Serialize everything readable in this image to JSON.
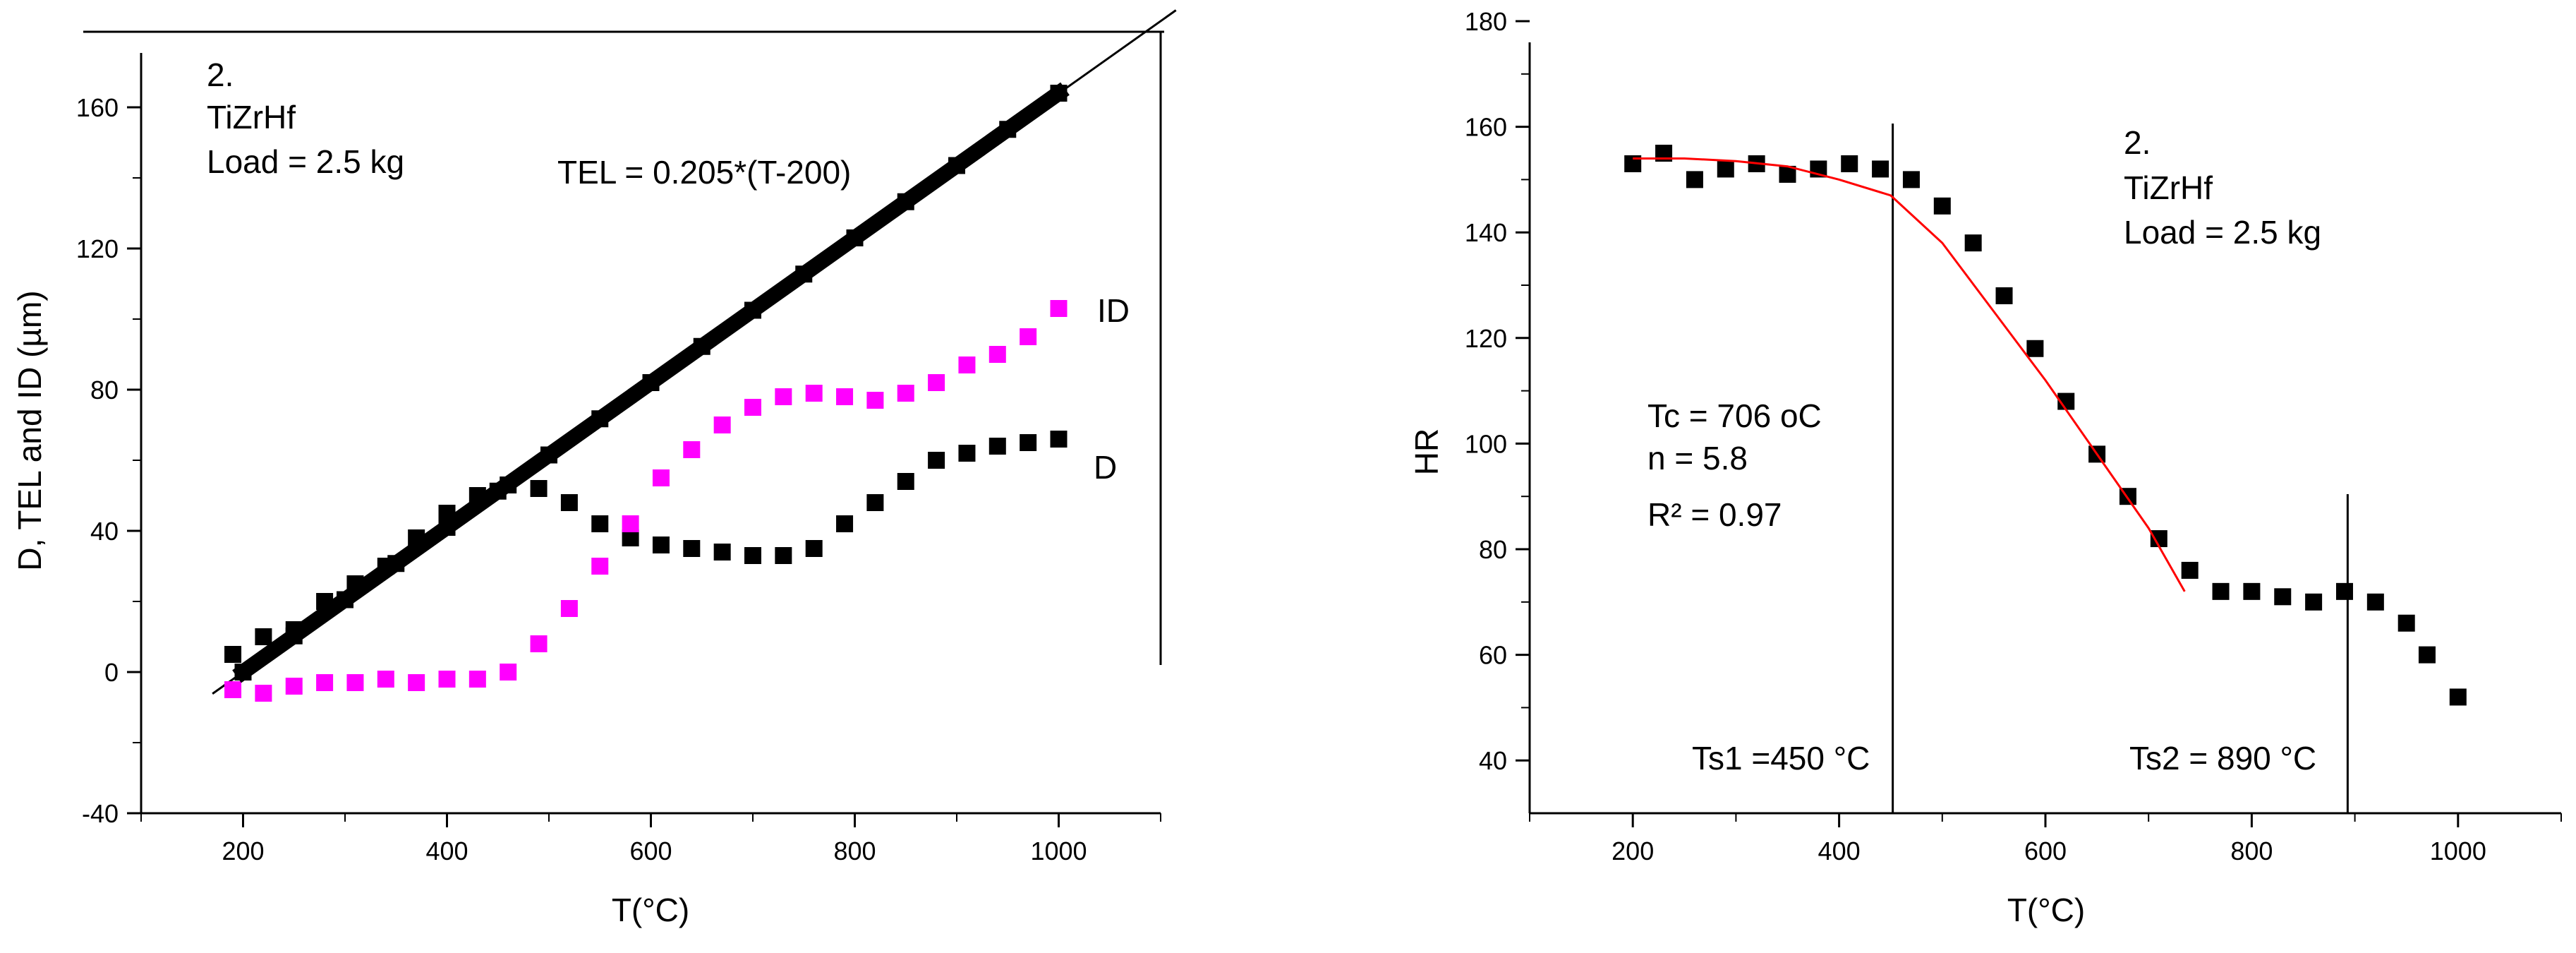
{
  "chart_data": [
    {
      "type": "scatter",
      "title": "",
      "xlabel": "T(°C)",
      "ylabel": "D, TEL and ID (µm)",
      "xlim": [
        100,
        1100
      ],
      "ylim": [
        -40,
        180
      ],
      "xticks": [
        200,
        400,
        600,
        800,
        1000
      ],
      "yticks": [
        -40,
        0,
        40,
        80,
        120,
        160
      ],
      "annotations": [
        "2.",
        "TiZrHf",
        "Load = 2.5 kg",
        "TEL = 0.205*(T-200)"
      ],
      "series": [
        {
          "name": "D",
          "color": "#000000",
          "marker": "square",
          "points": [
            [
              190,
              5
            ],
            [
              220,
              10
            ],
            [
              250,
              12
            ],
            [
              280,
              20
            ],
            [
              310,
              25
            ],
            [
              340,
              30
            ],
            [
              370,
              38
            ],
            [
              400,
              45
            ],
            [
              430,
              50
            ],
            [
              460,
              53
            ],
            [
              490,
              52
            ],
            [
              520,
              48
            ],
            [
              550,
              42
            ],
            [
              580,
              38
            ],
            [
              610,
              36
            ],
            [
              640,
              35
            ],
            [
              670,
              34
            ],
            [
              700,
              33
            ],
            [
              730,
              33
            ],
            [
              760,
              35
            ],
            [
              790,
              42
            ],
            [
              820,
              48
            ],
            [
              850,
              54
            ],
            [
              880,
              60
            ],
            [
              910,
              62
            ],
            [
              940,
              64
            ],
            [
              970,
              65
            ],
            [
              1000,
              66
            ]
          ]
        },
        {
          "name": "ID",
          "color": "#ff00ff",
          "marker": "square",
          "points": [
            [
              190,
              -5
            ],
            [
              220,
              -6
            ],
            [
              250,
              -4
            ],
            [
              280,
              -3
            ],
            [
              310,
              -3
            ],
            [
              340,
              -2
            ],
            [
              370,
              -3
            ],
            [
              400,
              -2
            ],
            [
              430,
              -2
            ],
            [
              460,
              0
            ],
            [
              490,
              8
            ],
            [
              520,
              18
            ],
            [
              550,
              30
            ],
            [
              580,
              42
            ],
            [
              610,
              55
            ],
            [
              640,
              63
            ],
            [
              670,
              70
            ],
            [
              700,
              75
            ],
            [
              730,
              78
            ],
            [
              760,
              79
            ],
            [
              790,
              78
            ],
            [
              820,
              77
            ],
            [
              850,
              79
            ],
            [
              880,
              82
            ],
            [
              910,
              87
            ],
            [
              940,
              90
            ],
            [
              970,
              95
            ],
            [
              1000,
              103
            ]
          ]
        },
        {
          "name": "TEL",
          "color": "#000000",
          "marker": "square",
          "points": [
            [
              200,
              0
            ],
            [
              250,
              10.25
            ],
            [
              300,
              20.5
            ],
            [
              350,
              30.75
            ],
            [
              400,
              41
            ],
            [
              450,
              51.25
            ],
            [
              500,
              61.5
            ],
            [
              550,
              71.75
            ],
            [
              600,
              82
            ],
            [
              650,
              92.25
            ],
            [
              700,
              102.5
            ],
            [
              750,
              112.75
            ],
            [
              800,
              123
            ],
            [
              850,
              133.25
            ],
            [
              900,
              143.5
            ],
            [
              950,
              153.75
            ],
            [
              1000,
              164
            ]
          ]
        }
      ],
      "fit_line": {
        "x": [
          170,
          1115
        ],
        "y": [
          -6.15,
          187.5
        ]
      },
      "vertical_line_x": 1100,
      "legend": "none",
      "grid": false
    },
    {
      "type": "scatter",
      "title": "",
      "xlabel": "T(°C)",
      "ylabel": "HR",
      "xlim": [
        100,
        1100
      ],
      "ylim": [
        30,
        180
      ],
      "xticks": [
        200,
        400,
        600,
        800,
        1000
      ],
      "yticks": [
        40,
        60,
        80,
        100,
        120,
        140,
        160,
        180
      ],
      "annotations": [
        "2.",
        "TiZrHf",
        "Load = 2.5 kg",
        "Tc = 706 oC",
        "n = 5.8",
        "R² = 0.97",
        "Ts1 =450 °C",
        "Ts2 = 890 °C"
      ],
      "series": [
        {
          "name": "",
          "color": "#000000",
          "marker": "square",
          "points": [
            [
              200,
              153
            ],
            [
              230,
              155
            ],
            [
              260,
              150
            ],
            [
              290,
              152
            ],
            [
              320,
              153
            ],
            [
              350,
              151
            ],
            [
              380,
              152
            ],
            [
              410,
              153
            ],
            [
              440,
              152
            ],
            [
              470,
              150
            ],
            [
              500,
              145
            ],
            [
              530,
              138
            ],
            [
              560,
              128
            ],
            [
              590,
              118
            ],
            [
              620,
              108
            ],
            [
              650,
              98
            ],
            [
              680,
              90
            ],
            [
              710,
              82
            ],
            [
              740,
              76
            ],
            [
              770,
              72
            ],
            [
              800,
              72
            ],
            [
              830,
              71
            ],
            [
              860,
              70
            ],
            [
              890,
              72
            ],
            [
              920,
              70
            ],
            [
              950,
              66
            ],
            [
              970,
              60
            ],
            [
              1000,
              52
            ]
          ]
        }
      ],
      "fit_curve": {
        "color": "#ff0000",
        "x": [
          200,
          250,
          300,
          350,
          400,
          450,
          500,
          550,
          600,
          650,
          700,
          735
        ],
        "y": [
          154,
          154,
          153.5,
          152.5,
          150,
          147,
          138,
          125,
          112,
          98,
          84,
          72
        ]
      },
      "vertical_lines": [
        {
          "x": 452,
          "label": "Ts1 =450 °C"
        },
        {
          "x": 893,
          "label": "Ts2 = 890 °C"
        }
      ],
      "legend": "none",
      "grid": false
    }
  ]
}
